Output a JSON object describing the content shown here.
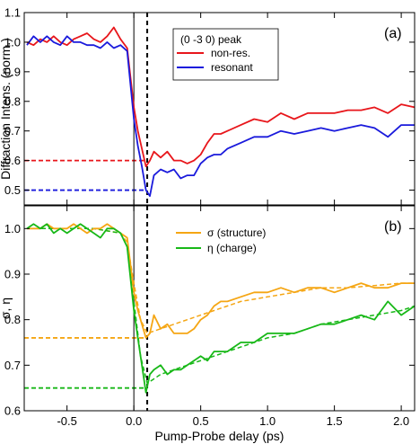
{
  "chart_data": [
    {
      "type": "line",
      "panel_label": "(a)",
      "ylabel": "Diffraction Intens. (norm.)",
      "xlim": [
        -0.82,
        2.1
      ],
      "ylim": [
        0.45,
        1.1
      ],
      "yticks": [
        0.5,
        0.6,
        0.7,
        0.8,
        0.9,
        1.0,
        1.1
      ],
      "xticks": [
        -0.5,
        0.0,
        0.5,
        1.0,
        1.5,
        2.0
      ],
      "legend": {
        "title": "(0 -3 0) peak",
        "position": "top-right"
      },
      "series": [
        {
          "name": "non-res.",
          "color": "#e8161b",
          "x": [
            -0.8,
            -0.75,
            -0.7,
            -0.65,
            -0.6,
            -0.55,
            -0.5,
            -0.45,
            -0.4,
            -0.35,
            -0.3,
            -0.25,
            -0.2,
            -0.15,
            -0.1,
            -0.05,
            0.0,
            0.03,
            0.06,
            0.09,
            0.12,
            0.15,
            0.2,
            0.25,
            0.3,
            0.35,
            0.4,
            0.45,
            0.5,
            0.55,
            0.6,
            0.65,
            0.7,
            0.8,
            0.9,
            1.0,
            1.1,
            1.2,
            1.3,
            1.4,
            1.5,
            1.6,
            1.7,
            1.8,
            1.9,
            2.0,
            2.1
          ],
          "y": [
            1.0,
            0.99,
            1.01,
            1.0,
            1.02,
            1.0,
            0.99,
            1.01,
            1.02,
            1.03,
            1.01,
            1.0,
            1.02,
            1.05,
            1.01,
            0.98,
            0.78,
            0.7,
            0.64,
            0.58,
            0.6,
            0.63,
            0.61,
            0.63,
            0.6,
            0.6,
            0.59,
            0.6,
            0.62,
            0.66,
            0.69,
            0.69,
            0.7,
            0.72,
            0.74,
            0.73,
            0.76,
            0.74,
            0.76,
            0.76,
            0.76,
            0.77,
            0.77,
            0.78,
            0.76,
            0.79,
            0.78
          ]
        },
        {
          "name": "resonant",
          "color": "#1a1adc",
          "x": [
            -0.8,
            -0.75,
            -0.7,
            -0.65,
            -0.6,
            -0.55,
            -0.5,
            -0.45,
            -0.4,
            -0.35,
            -0.3,
            -0.25,
            -0.2,
            -0.15,
            -0.1,
            -0.05,
            0.0,
            0.03,
            0.06,
            0.09,
            0.12,
            0.15,
            0.2,
            0.25,
            0.3,
            0.35,
            0.4,
            0.45,
            0.5,
            0.55,
            0.6,
            0.65,
            0.7,
            0.8,
            0.9,
            1.0,
            1.1,
            1.2,
            1.3,
            1.4,
            1.5,
            1.6,
            1.7,
            1.8,
            1.9,
            2.0,
            2.1
          ],
          "y": [
            0.99,
            1.02,
            1.0,
            1.02,
            1.0,
            0.99,
            1.02,
            1.0,
            1.0,
            0.99,
            0.99,
            0.98,
            1.0,
            0.98,
            0.99,
            0.97,
            0.74,
            0.65,
            0.58,
            0.5,
            0.48,
            0.55,
            0.57,
            0.56,
            0.57,
            0.54,
            0.55,
            0.55,
            0.59,
            0.61,
            0.62,
            0.62,
            0.64,
            0.66,
            0.68,
            0.68,
            0.7,
            0.69,
            0.7,
            0.71,
            0.7,
            0.71,
            0.72,
            0.71,
            0.68,
            0.72,
            0.72
          ]
        }
      ],
      "reference_lines": [
        {
          "kind": "horizontal-dashed",
          "y": 0.6,
          "x_range": [
            -0.82,
            0.09
          ],
          "color": "#e8161b"
        },
        {
          "kind": "horizontal-dashed",
          "y": 0.5,
          "x_range": [
            -0.82,
            0.09
          ],
          "color": "#1a1adc"
        },
        {
          "kind": "vertical-solid",
          "x": 0.0,
          "color": "#000000"
        },
        {
          "kind": "vertical-dashed",
          "x": 0.1,
          "color": "#000000"
        }
      ]
    },
    {
      "type": "line",
      "panel_label": "(b)",
      "ylabel": "σ, η",
      "xlabel": "Pump-Probe delay (ps)",
      "xlim": [
        -0.82,
        2.1
      ],
      "ylim": [
        0.6,
        1.05
      ],
      "yticks": [
        0.6,
        0.7,
        0.8,
        0.9,
        1.0
      ],
      "xticks": [
        -0.5,
        0.0,
        0.5,
        1.0,
        1.5,
        2.0
      ],
      "xtick_labels": [
        "-0.5",
        "0.0",
        "0.5",
        "1.0",
        "1.5",
        "2.0"
      ],
      "legend": {
        "position": "top-right"
      },
      "series": [
        {
          "name": "σ (structure)",
          "color": "#f5a614",
          "x": [
            -0.8,
            -0.75,
            -0.7,
            -0.65,
            -0.6,
            -0.55,
            -0.5,
            -0.45,
            -0.4,
            -0.35,
            -0.3,
            -0.25,
            -0.2,
            -0.15,
            -0.1,
            -0.05,
            0.0,
            0.03,
            0.06,
            0.09,
            0.12,
            0.15,
            0.2,
            0.25,
            0.3,
            0.35,
            0.4,
            0.45,
            0.5,
            0.55,
            0.6,
            0.65,
            0.7,
            0.8,
            0.9,
            1.0,
            1.1,
            1.2,
            1.3,
            1.4,
            1.5,
            1.6,
            1.7,
            1.8,
            1.9,
            2.0,
            2.1
          ],
          "y": [
            1.0,
            1.0,
            1.0,
            1.01,
            1.0,
            1.0,
            1.0,
            1.01,
            1.0,
            0.99,
            1.0,
            1.0,
            1.01,
            1.0,
            0.99,
            0.98,
            0.86,
            0.82,
            0.79,
            0.76,
            0.77,
            0.81,
            0.78,
            0.79,
            0.77,
            0.77,
            0.77,
            0.78,
            0.8,
            0.81,
            0.83,
            0.84,
            0.84,
            0.85,
            0.86,
            0.86,
            0.87,
            0.86,
            0.87,
            0.87,
            0.86,
            0.87,
            0.88,
            0.87,
            0.87,
            0.88,
            0.88
          ]
        },
        {
          "name": "η (charge)",
          "color": "#18b818",
          "x": [
            -0.8,
            -0.75,
            -0.7,
            -0.65,
            -0.6,
            -0.55,
            -0.5,
            -0.45,
            -0.4,
            -0.35,
            -0.3,
            -0.25,
            -0.2,
            -0.15,
            -0.1,
            -0.05,
            0.0,
            0.03,
            0.06,
            0.09,
            0.12,
            0.15,
            0.2,
            0.25,
            0.3,
            0.35,
            0.4,
            0.45,
            0.5,
            0.55,
            0.6,
            0.65,
            0.7,
            0.8,
            0.9,
            1.0,
            1.1,
            1.2,
            1.3,
            1.4,
            1.5,
            1.6,
            1.7,
            1.8,
            1.9,
            2.0,
            2.1
          ],
          "y": [
            1.0,
            1.01,
            1.0,
            1.01,
            0.99,
            1.0,
            0.99,
            1.0,
            1.01,
            1.0,
            0.99,
            0.98,
            1.0,
            1.0,
            0.99,
            0.96,
            0.82,
            0.76,
            0.7,
            0.64,
            0.68,
            0.69,
            0.7,
            0.68,
            0.69,
            0.69,
            0.7,
            0.71,
            0.72,
            0.71,
            0.73,
            0.73,
            0.73,
            0.75,
            0.75,
            0.77,
            0.77,
            0.77,
            0.78,
            0.79,
            0.79,
            0.8,
            0.81,
            0.8,
            0.84,
            0.81,
            0.83
          ]
        }
      ],
      "fits": [
        {
          "color": "#f5a614",
          "x": [
            -0.8,
            -0.3,
            -0.1,
            -0.05,
            0.0,
            0.05,
            0.1,
            0.2,
            0.4,
            0.6,
            0.8,
            1.0,
            1.2,
            1.4,
            1.6,
            1.8,
            2.0,
            2.1
          ],
          "y": [
            1.0,
            1.0,
            0.99,
            0.97,
            0.88,
            0.8,
            0.77,
            0.78,
            0.8,
            0.82,
            0.84,
            0.85,
            0.86,
            0.87,
            0.87,
            0.875,
            0.88,
            0.88
          ]
        },
        {
          "color": "#18b818",
          "x": [
            -0.8,
            -0.3,
            -0.1,
            -0.05,
            0.0,
            0.05,
            0.1,
            0.2,
            0.4,
            0.6,
            0.8,
            1.0,
            1.2,
            1.4,
            1.6,
            1.8,
            2.0,
            2.1
          ],
          "y": [
            1.0,
            1.0,
            0.99,
            0.96,
            0.84,
            0.72,
            0.66,
            0.68,
            0.7,
            0.72,
            0.74,
            0.76,
            0.77,
            0.79,
            0.8,
            0.81,
            0.82,
            0.83
          ]
        }
      ],
      "reference_lines": [
        {
          "kind": "horizontal-dashed",
          "y": 0.76,
          "x_range": [
            -0.82,
            0.09
          ],
          "color": "#f5a614"
        },
        {
          "kind": "horizontal-dashed",
          "y": 0.65,
          "x_range": [
            -0.82,
            0.09
          ],
          "color": "#18b818"
        },
        {
          "kind": "vertical-solid",
          "x": 0.0,
          "color": "#000000"
        },
        {
          "kind": "vertical-dashed",
          "x": 0.1,
          "color": "#000000"
        }
      ]
    }
  ]
}
